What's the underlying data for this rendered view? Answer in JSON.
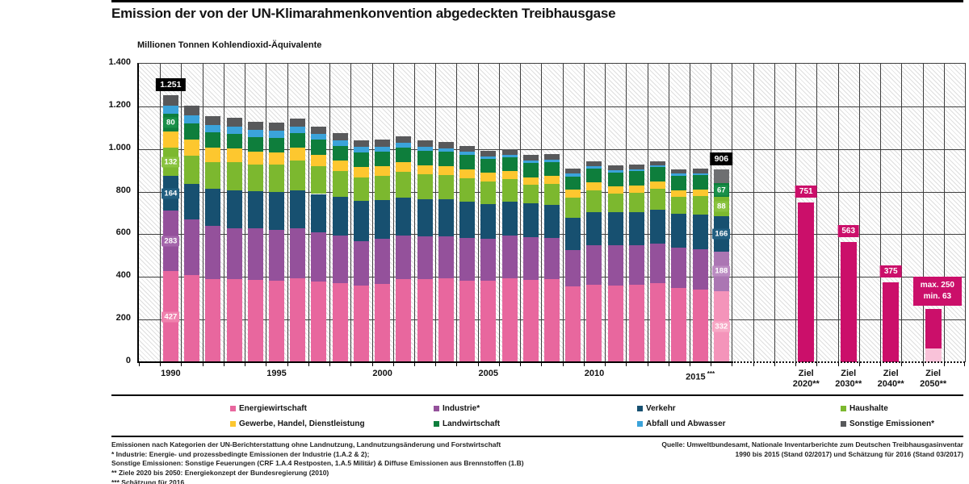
{
  "header": {
    "title": "Emission der von der UN-Klimarahmenkonvention abgedeckten Treibhausgase",
    "unit_label": "Millionen Tonnen Kohlendioxid-Äquivalente"
  },
  "chart_data": {
    "type": "bar",
    "subtype": "stacked",
    "title": "Emission der von der UN-Klimarahmenkonvention abgedeckten Treibhausgase",
    "ylabel": "Millionen Tonnen Kohlendioxid-Äquivalente",
    "ylim": [
      0,
      1400
    ],
    "ytick_step": 200,
    "ytick_labels": [
      "0",
      "200",
      "400",
      "600",
      "800",
      "1.000",
      "1.200",
      "1.400"
    ],
    "grid": "on",
    "categories": [
      1990,
      1991,
      1992,
      1993,
      1994,
      1995,
      1996,
      1997,
      1998,
      1999,
      2000,
      2001,
      2002,
      2003,
      2004,
      2005,
      2006,
      2007,
      2008,
      2009,
      2010,
      2011,
      2012,
      2013,
      2014,
      2015,
      2016
    ],
    "estimate_index": 26,
    "xticks": [
      {
        "year_index": 0,
        "text": "1990"
      },
      {
        "year_index": 5,
        "text": "1995"
      },
      {
        "year_index": 10,
        "text": "2000"
      },
      {
        "year_index": 15,
        "text": "2005"
      },
      {
        "year_index": 20,
        "text": "2010"
      },
      {
        "year_index": 25,
        "text": "2015",
        "suffix": "***"
      }
    ],
    "series": [
      {
        "name": "Energiewirtschaft",
        "color": "#e8679e",
        "estimate_color": "#f494ba",
        "label_bg": "#ef82ae",
        "estimate_label_bg": "#f7a9c6",
        "values": [
          427,
          408,
          391,
          390,
          387,
          382,
          392,
          380,
          370,
          358,
          368,
          389,
          390,
          392,
          384,
          384,
          393,
          387,
          388,
          355,
          363,
          359,
          364,
          372,
          350,
          342,
          332
        ]
      },
      {
        "name": "Industrie*",
        "color": "#94519b",
        "estimate_color": "#ab76b3",
        "label_bg": "#a466ab",
        "estimate_label_bg": "#bb8cc2",
        "values": [
          283,
          261,
          247,
          240,
          241,
          239,
          235,
          231,
          224,
          210,
          212,
          205,
          200,
          200,
          200,
          196,
          200,
          201,
          195,
          170,
          187,
          190,
          186,
          186,
          186,
          188,
          188
        ]
      },
      {
        "name": "Verkehr",
        "color": "#175070",
        "estimate_color": "#175070",
        "label_bg": "#215e80",
        "estimate_label_bg": "#215e80",
        "values": [
          164,
          168,
          174,
          177,
          176,
          177,
          178,
          178,
          181,
          187,
          182,
          178,
          176,
          171,
          169,
          161,
          159,
          156,
          155,
          153,
          154,
          155,
          154,
          157,
          160,
          163,
          166
        ]
      },
      {
        "name": "Haushalte",
        "color": "#7cb82f",
        "estimate_color": "#7cb82f",
        "label_bg": "#8ac340",
        "estimate_label_bg": "#8ac340",
        "values": [
          132,
          133,
          126,
          130,
          122,
          128,
          140,
          129,
          122,
          113,
          114,
          121,
          115,
          115,
          111,
          107,
          106,
          89,
          98,
          94,
          103,
          87,
          91,
          97,
          80,
          85,
          88
        ]
      },
      {
        "name": "Gewerbe, Handel, Dienstleistung",
        "color": "#fdc72f",
        "estimate_color": "#fdc72f",
        "label_bg": "#fdc72f",
        "estimate_label_bg": "#fdc72f",
        "values": [
          78,
          75,
          68,
          64,
          60,
          58,
          60,
          55,
          50,
          48,
          45,
          47,
          44,
          43,
          41,
          40,
          39,
          35,
          37,
          36,
          38,
          34,
          35,
          36,
          31,
          33,
          0
        ]
      },
      {
        "name": "Landwirtschaft",
        "color": "#0e7e3c",
        "estimate_color": "#0e7e3c",
        "label_bg": "#1a9049",
        "estimate_label_bg": "#1a9049",
        "values": [
          80,
          75,
          71,
          70,
          69,
          69,
          70,
          70,
          69,
          69,
          68,
          68,
          66,
          65,
          66,
          64,
          64,
          65,
          66,
          64,
          64,
          65,
          65,
          66,
          67,
          66,
          67
        ]
      },
      {
        "name": "Abfall und Abwasser",
        "color": "#3ba3da",
        "estimate_color": "#3ba3da",
        "label_bg": "#3ba3da",
        "estimate_label_bg": "#3ba3da",
        "values": [
          38,
          37,
          36,
          35,
          33,
          32,
          30,
          28,
          26,
          24,
          22,
          20,
          19,
          17,
          15,
          14,
          13,
          13,
          12,
          12,
          11,
          11,
          10,
          10,
          10,
          10,
          0
        ]
      },
      {
        "name": "Sonstige Emissionen*",
        "color": "#58595b",
        "estimate_color": "#6e6f71",
        "label_bg": "#58595b",
        "estimate_label_bg": "#6e6f71",
        "values": [
          49,
          45,
          42,
          40,
          38,
          37,
          36,
          35,
          34,
          33,
          32,
          31,
          30,
          29,
          28,
          27,
          26,
          25,
          24,
          23,
          22,
          21,
          21,
          20,
          20,
          20,
          65
        ]
      }
    ],
    "total_badges": [
      {
        "bar": 0,
        "text": "1.251"
      },
      {
        "bar": 26,
        "text": "906"
      }
    ],
    "value_labels": [
      {
        "bar": 0,
        "series": 0,
        "text": "427"
      },
      {
        "bar": 0,
        "series": 1,
        "text": "283"
      },
      {
        "bar": 0,
        "series": 2,
        "text": "164"
      },
      {
        "bar": 0,
        "series": 3,
        "text": "132"
      },
      {
        "bar": 0,
        "series": 5,
        "text": "80"
      },
      {
        "bar": 26,
        "series": 0,
        "text": "332"
      },
      {
        "bar": 26,
        "series": 1,
        "text": "188"
      },
      {
        "bar": 26,
        "series": 2,
        "text": "166"
      },
      {
        "bar": 26,
        "series": 3,
        "text": "88"
      },
      {
        "bar": 26,
        "series": 5,
        "text": "67"
      }
    ],
    "targets": {
      "color": "#cb0f6a",
      "min_color": "#f9c2d9",
      "items": [
        {
          "slot": 31.5,
          "label_line1": "Ziel",
          "label_line2": "2020**",
          "value": 751,
          "badge": "751"
        },
        {
          "slot": 33.5,
          "label_line1": "Ziel",
          "label_line2": "2030**",
          "value": 563,
          "badge": "563"
        },
        {
          "slot": 35.5,
          "label_line1": "Ziel",
          "label_line2": "2040**",
          "value": 375,
          "badge": "375"
        },
        {
          "slot": 37.5,
          "label_line1": "Ziel",
          "label_line2": "2050**",
          "value_max": 250,
          "value_min": 63,
          "badge_lines": [
            "max. 250",
            "min. 63"
          ]
        }
      ]
    }
  },
  "legend": {
    "items": [
      {
        "label": "Energiewirtschaft",
        "color": "#e8679e"
      },
      {
        "label": "Industrie*",
        "color": "#94519b"
      },
      {
        "label": "Verkehr",
        "color": "#175070"
      },
      {
        "label": "Haushalte",
        "color": "#7cb82f"
      },
      {
        "label": "Gewerbe, Handel, Dienstleistung",
        "color": "#fdc72f"
      },
      {
        "label": "Landwirtschaft",
        "color": "#0e7e3c"
      },
      {
        "label": "Abfall und Abwasser",
        "color": "#3ba3da"
      },
      {
        "label": "Sonstige Emissionen*",
        "color": "#58595b"
      }
    ]
  },
  "footnotes": {
    "lines": [
      "Emissionen nach Kategorien der UN-Berichterstattung ohne Landnutzung, Landnutzungsänderung und Forstwirtschaft",
      "* Industrie: Energie- und prozessbedingte Emissionen der Industrie (1.A.2 & 2);",
      "Sonstige Emissionen: Sonstige Feuerungen (CRF 1.A.4 Restposten, 1.A.5 Militär) & Diffuse Emissionen aus Brennstoffen (1.B)",
      "** Ziele 2020 bis 2050: Energiekonzept der Bundesregierung (2010)",
      "*** Schätzung für 2016"
    ]
  },
  "source": {
    "lines": [
      "Quelle: Umweltbundesamt, Nationale Inventarberichte zum Deutschen Treibhausgasinventar",
      "1990 bis 2015 (Stand 02/2017) und Schätzung für 2016 (Stand 03/2017)"
    ]
  }
}
